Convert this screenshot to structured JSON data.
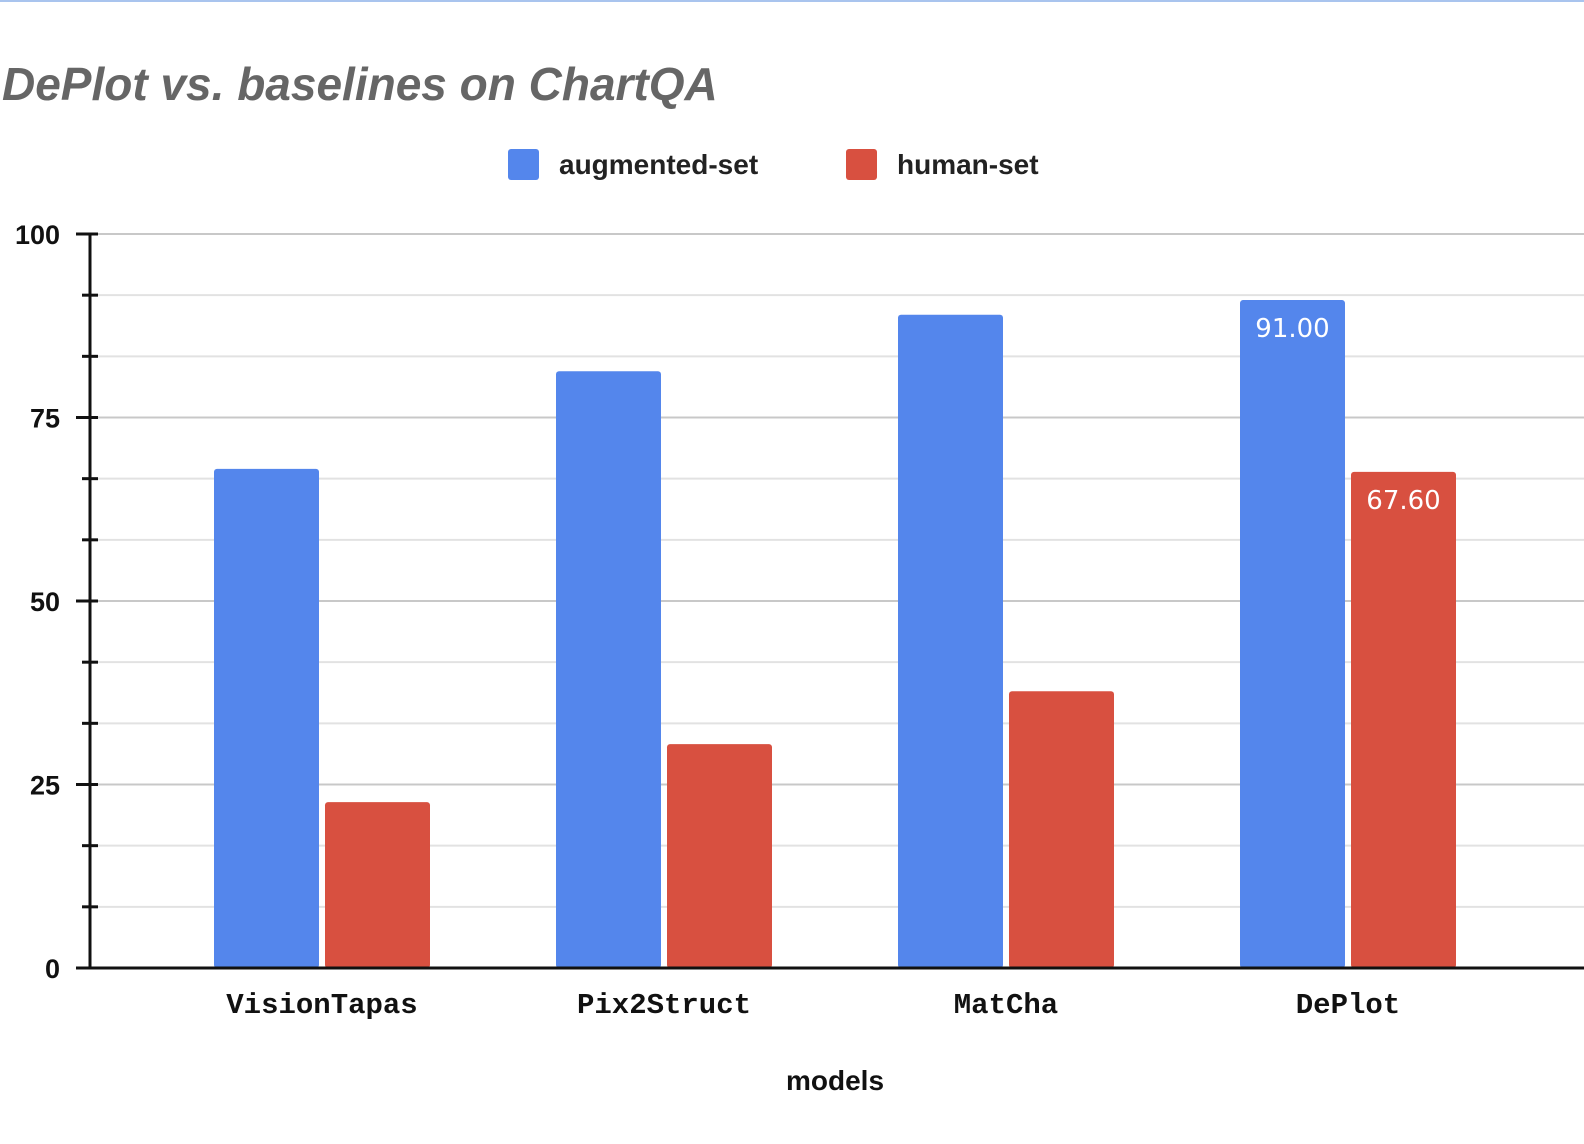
{
  "chart_data": {
    "type": "bar",
    "title": "DePlot vs. baselines on ChartQA",
    "xlabel": "models",
    "ylabel": "",
    "categories": [
      "VisionTapas",
      "Pix2Struct",
      "MatCha",
      "DePlot"
    ],
    "series": [
      {
        "name": "augmented-set",
        "color": "#5486ec",
        "values": [
          68.0,
          81.3,
          89.0,
          91.0
        ],
        "data_labels": [
          null,
          null,
          null,
          "91.00"
        ]
      },
      {
        "name": "human-set",
        "color": "#d85040",
        "values": [
          22.6,
          30.5,
          37.7,
          67.6
        ],
        "data_labels": [
          null,
          null,
          null,
          "67.60"
        ]
      }
    ],
    "ylim": [
      0,
      100
    ],
    "yticks": [
      "0",
      "25",
      "50",
      "75",
      "100"
    ],
    "grid": true,
    "legend_position": "top"
  }
}
